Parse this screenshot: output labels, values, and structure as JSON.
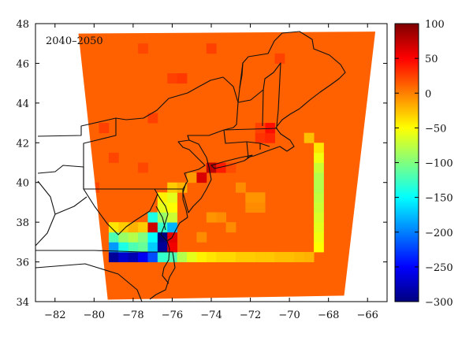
{
  "chart_data": {
    "type": "heatmap",
    "title": "",
    "panel_label": "2040–2050",
    "xlabel": "",
    "ylabel": "",
    "xlim": [
      -83,
      -65
    ],
    "ylim": [
      34,
      48
    ],
    "x_ticks": [
      -82,
      -80,
      -78,
      -76,
      -74,
      -72,
      -70,
      -68,
      -66
    ],
    "y_ticks": [
      34,
      36,
      38,
      40,
      42,
      44,
      46,
      48
    ],
    "x_tick_labels": [
      "−82",
      "−80",
      "−78",
      "−76",
      "−74",
      "−72",
      "−70",
      "−68",
      "−66"
    ],
    "y_tick_labels": [
      "34",
      "36",
      "38",
      "40",
      "42",
      "44",
      "46",
      "48"
    ],
    "colorbar": {
      "range": [
        -300,
        100
      ],
      "ticks": [
        100,
        50,
        0,
        -50,
        -100,
        -150,
        -200,
        -250,
        -300
      ],
      "tick_labels": [
        "100",
        "50",
        "0",
        "−50",
        "−100",
        "−150",
        "−200",
        "−250",
        "−300"
      ],
      "colormap": "jet"
    },
    "domain_corners": [
      [
        -80.8,
        47.5
      ],
      [
        -65.6,
        47.6
      ],
      [
        -67.2,
        34.3
      ],
      [
        -79.3,
        34.1
      ]
    ],
    "background_value": 12,
    "cells": [
      {
        "lon": -79,
        "lat": 36.25,
        "value": -290
      },
      {
        "lon": -78.5,
        "lat": 36.25,
        "value": -270
      },
      {
        "lon": -78,
        "lat": 36.25,
        "value": -280
      },
      {
        "lon": -77.5,
        "lat": 36.25,
        "value": -255
      },
      {
        "lon": -77,
        "lat": 36.25,
        "value": -220
      },
      {
        "lon": -76.5,
        "lat": 36.25,
        "value": -130
      },
      {
        "lon": -76,
        "lat": 36.25,
        "value": -120
      },
      {
        "lon": -75.5,
        "lat": 36.25,
        "value": -80
      },
      {
        "lon": -75,
        "lat": 36.25,
        "value": -60
      },
      {
        "lon": -74.5,
        "lat": 36.25,
        "value": -45
      },
      {
        "lon": -74,
        "lat": 36.25,
        "value": -40
      },
      {
        "lon": -73.5,
        "lat": 36.25,
        "value": -35
      },
      {
        "lon": -73,
        "lat": 36.25,
        "value": -35
      },
      {
        "lon": -72.5,
        "lat": 36.25,
        "value": -30
      },
      {
        "lon": -72,
        "lat": 36.25,
        "value": -30
      },
      {
        "lon": -71.5,
        "lat": 36.25,
        "value": -28
      },
      {
        "lon": -71,
        "lat": 36.25,
        "value": -28
      },
      {
        "lon": -70.5,
        "lat": 36.25,
        "value": -25
      },
      {
        "lon": -70,
        "lat": 36.25,
        "value": -25
      },
      {
        "lon": -69.5,
        "lat": 36.25,
        "value": -22
      },
      {
        "lon": -69,
        "lat": 36.25,
        "value": -20
      },
      {
        "lon": -79,
        "lat": 36.75,
        "value": -190
      },
      {
        "lon": -78.5,
        "lat": 36.75,
        "value": -140
      },
      {
        "lon": -78,
        "lat": 36.75,
        "value": -120
      },
      {
        "lon": -77.5,
        "lat": 36.75,
        "value": -110
      },
      {
        "lon": -77,
        "lat": 36.75,
        "value": -170
      },
      {
        "lon": -76.5,
        "lat": 36.75,
        "value": -290
      },
      {
        "lon": -76,
        "lat": 36.75,
        "value": 55
      },
      {
        "lon": -79,
        "lat": 37.25,
        "value": -120
      },
      {
        "lon": -78.5,
        "lat": 37.25,
        "value": -90
      },
      {
        "lon": -78,
        "lat": 37.25,
        "value": -80
      },
      {
        "lon": -77.5,
        "lat": 37.25,
        "value": -100
      },
      {
        "lon": -77,
        "lat": 37.25,
        "value": -150
      },
      {
        "lon": -76.5,
        "lat": 37.25,
        "value": -300
      },
      {
        "lon": -76,
        "lat": 37.25,
        "value": 60
      },
      {
        "lon": -79,
        "lat": 37.75,
        "value": -40
      },
      {
        "lon": -78.5,
        "lat": 37.75,
        "value": -30
      },
      {
        "lon": -78,
        "lat": 37.75,
        "value": -20
      },
      {
        "lon": -77.5,
        "lat": 37.75,
        "value": -30
      },
      {
        "lon": -77,
        "lat": 37.75,
        "value": 70
      },
      {
        "lon": -76.5,
        "lat": 37.75,
        "value": -130
      },
      {
        "lon": -76,
        "lat": 37.75,
        "value": -180
      },
      {
        "lon": -77,
        "lat": 38.25,
        "value": -140
      },
      {
        "lon": -76.5,
        "lat": 38.25,
        "value": -90
      },
      {
        "lon": -76,
        "lat": 38.25,
        "value": -70
      },
      {
        "lon": -76.5,
        "lat": 38.75,
        "value": -60
      },
      {
        "lon": -76,
        "lat": 38.75,
        "value": -50
      },
      {
        "lon": -76.5,
        "lat": 39.25,
        "value": -45
      },
      {
        "lon": -76,
        "lat": 39.25,
        "value": -60
      },
      {
        "lon": -76,
        "lat": 39.75,
        "value": -30
      },
      {
        "lon": -75.5,
        "lat": 39.75,
        "value": -20
      },
      {
        "lon": -75,
        "lat": 40.25,
        "value": -10
      },
      {
        "lon": -74.5,
        "lat": 40.25,
        "value": 65
      },
      {
        "lon": -74,
        "lat": 40.75,
        "value": 75
      },
      {
        "lon": -73.5,
        "lat": 40.75,
        "value": 40
      },
      {
        "lon": -73,
        "lat": 40.75,
        "value": 20
      },
      {
        "lon": -71.5,
        "lat": 42.25,
        "value": 30
      },
      {
        "lon": -71,
        "lat": 42.25,
        "value": 35
      },
      {
        "lon": -71,
        "lat": 42.75,
        "value": 45
      },
      {
        "lon": -71.5,
        "lat": 42.75,
        "value": 25
      },
      {
        "lon": -68.5,
        "lat": 36.75,
        "value": -50
      },
      {
        "lon": -68.5,
        "lat": 37.25,
        "value": -55
      },
      {
        "lon": -68.5,
        "lat": 37.75,
        "value": -60
      },
      {
        "lon": -68.5,
        "lat": 38.25,
        "value": -65
      },
      {
        "lon": -68.5,
        "lat": 38.75,
        "value": -70
      },
      {
        "lon": -68.5,
        "lat": 39.25,
        "value": -75
      },
      {
        "lon": -68.5,
        "lat": 39.75,
        "value": -80
      },
      {
        "lon": -68.5,
        "lat": 40.25,
        "value": -80
      },
      {
        "lon": -68.5,
        "lat": 40.75,
        "value": -70
      },
      {
        "lon": -68.5,
        "lat": 41.25,
        "value": -55
      },
      {
        "lon": -68.5,
        "lat": 41.75,
        "value": -40
      },
      {
        "lon": -69,
        "lat": 42.25,
        "value": -25
      },
      {
        "lon": -72,
        "lat": 38.75,
        "value": -5
      },
      {
        "lon": -71.5,
        "lat": 38.75,
        "value": -5
      },
      {
        "lon": -72,
        "lat": 39.25,
        "value": -8
      },
      {
        "lon": -71.5,
        "lat": 39.25,
        "value": -8
      },
      {
        "lon": -72.5,
        "lat": 39.75,
        "value": -5
      },
      {
        "lon": -73,
        "lat": 37.75,
        "value": -5
      },
      {
        "lon": -74,
        "lat": 38.25,
        "value": -8
      },
      {
        "lon": -73.5,
        "lat": 38.25,
        "value": -5
      },
      {
        "lon": -74.5,
        "lat": 37.25,
        "value": -5
      },
      {
        "lon": -79.5,
        "lat": 42.75,
        "value": 25
      },
      {
        "lon": -76,
        "lat": 45.25,
        "value": 25
      },
      {
        "lon": -75.5,
        "lat": 45.25,
        "value": 28
      },
      {
        "lon": -74,
        "lat": 46.75,
        "value": 25
      },
      {
        "lon": -70.5,
        "lat": 46.25,
        "value": 24
      },
      {
        "lon": -77.5,
        "lat": 46.75,
        "value": 22
      },
      {
        "lon": -77,
        "lat": 43.25,
        "value": 25
      },
      {
        "lon": -80,
        "lat": 39.75,
        "value": 22
      },
      {
        "lon": -77.5,
        "lat": 40.75,
        "value": 22
      },
      {
        "lon": -79,
        "lat": 41.25,
        "value": 23
      }
    ]
  }
}
